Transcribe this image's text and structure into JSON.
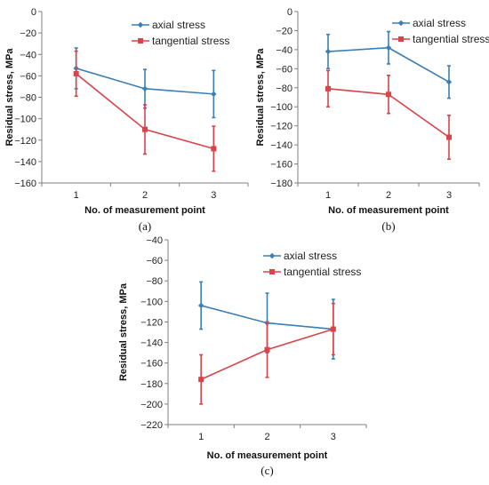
{
  "colors": {
    "axial": "#3a7fb5",
    "tangential": "#d9434a",
    "axis": "#7f7f7f"
  },
  "chart_data": [
    {
      "id": "a",
      "panel_label": "(a)",
      "type": "line",
      "xlabel": "No. of measurement point",
      "ylabel": "Residual stress, MPa",
      "x": [
        1,
        2,
        3
      ],
      "ylim": [
        -160,
        0
      ],
      "ystep": 20,
      "legend_position": "top-right",
      "grid": false,
      "series": [
        {
          "name": "axial stress",
          "color": "#3a7fb5",
          "marker": "diamond",
          "values": [
            -53,
            -72,
            -77
          ],
          "errors": [
            19,
            18,
            22
          ]
        },
        {
          "name": "tangential stress",
          "color": "#d9434a",
          "marker": "square",
          "values": [
            -58,
            -110,
            -128
          ],
          "errors": [
            21,
            23,
            21
          ]
        }
      ]
    },
    {
      "id": "b",
      "panel_label": "(b)",
      "type": "line",
      "xlabel": "No. of measurement point",
      "ylabel": "Residual stress, MPa",
      "x": [
        1,
        2,
        3
      ],
      "ylim": [
        -180,
        0
      ],
      "ystep": 20,
      "legend_position": "top-right",
      "grid": false,
      "series": [
        {
          "name": "axial stress",
          "color": "#3a7fb5",
          "marker": "diamond",
          "values": [
            -42,
            -38,
            -74
          ],
          "errors": [
            18,
            17,
            17
          ]
        },
        {
          "name": "tangential stress",
          "color": "#d9434a",
          "marker": "square",
          "values": [
            -81,
            -87,
            -132
          ],
          "errors": [
            19,
            20,
            23
          ]
        }
      ]
    },
    {
      "id": "c",
      "panel_label": "(c)",
      "type": "line",
      "xlabel": "No. of measurement point",
      "ylabel": "Residual stress, MPa",
      "x": [
        1,
        2,
        3
      ],
      "ylim": [
        -220,
        -40
      ],
      "ystep": 20,
      "legend_position": "top-right",
      "grid": false,
      "series": [
        {
          "name": "axial stress",
          "color": "#3a7fb5",
          "marker": "diamond",
          "values": [
            -104,
            -121,
            -127
          ],
          "errors": [
            23,
            29,
            29
          ]
        },
        {
          "name": "tangential stress",
          "color": "#d9434a",
          "marker": "square",
          "values": [
            -176,
            -147,
            -127
          ],
          "errors": [
            24,
            27,
            25
          ]
        }
      ]
    }
  ]
}
